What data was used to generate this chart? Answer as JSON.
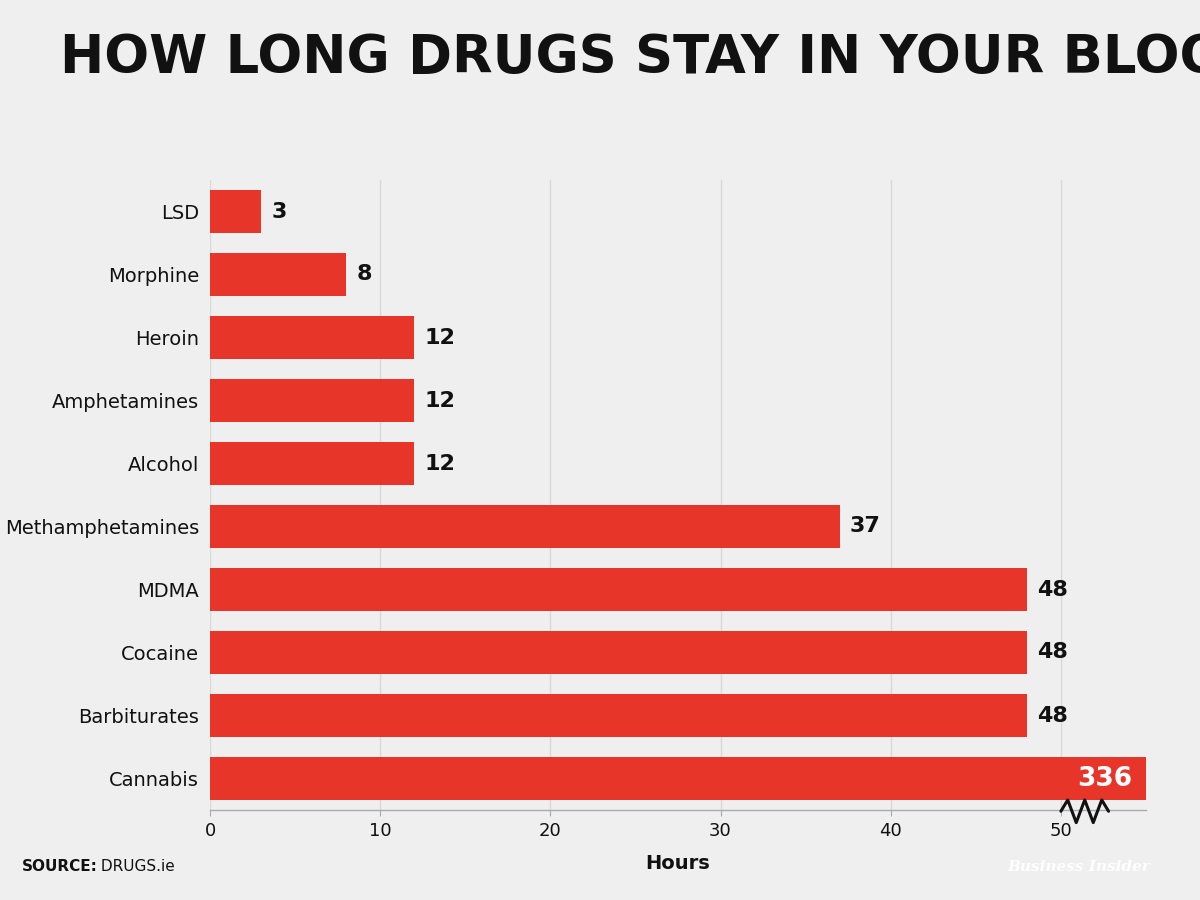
{
  "title": "HOW LONG DRUGS STAY IN YOUR BLOOD",
  "categories": [
    "Cannabis",
    "Barbiturates",
    "Cocaine",
    "MDMA",
    "Methamphetamines",
    "Alcohol",
    "Amphetamines",
    "Heroin",
    "Morphine",
    "LSD"
  ],
  "values": [
    336,
    48,
    48,
    48,
    37,
    12,
    12,
    12,
    8,
    3
  ],
  "bar_color": "#E8352A",
  "xlabel": "Hours",
  "background_color": "#EFEFEF",
  "footer_color": "#C8C9CA",
  "title_color": "#111111",
  "bar_label_color_default": "#111111",
  "bar_label_color_cannabis": "#FFFFFF",
  "axis_max": 55,
  "axis_ticks": [
    0,
    10,
    20,
    30,
    40,
    50
  ],
  "grid_color": "#D8D8D8",
  "bi_logo_bg": "#2D6C7A",
  "bi_logo_text": "Business Insider",
  "source_bold": "SOURCE:",
  "source_normal": " DRUGS.ie"
}
